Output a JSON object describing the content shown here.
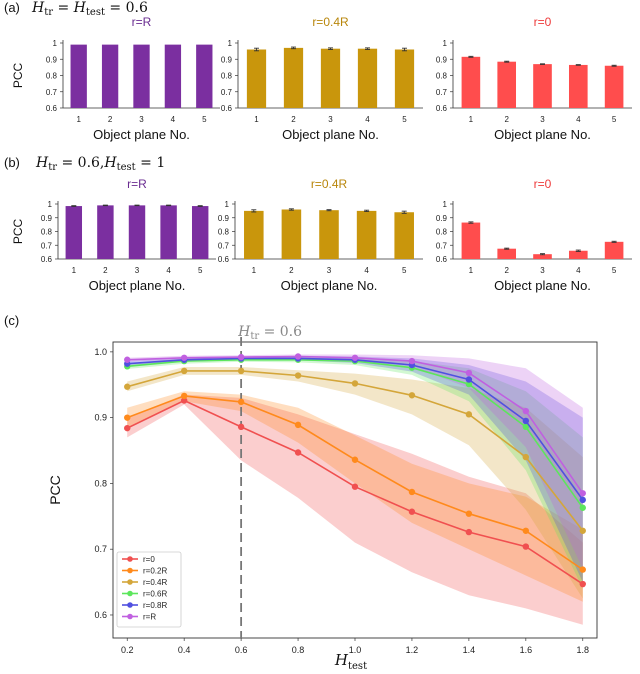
{
  "panels": {
    "a": {
      "label": "(a)",
      "heading": "H_tr = H_test = 0.6",
      "heading_parts": {
        "h1": "H",
        "s1": "tr",
        "eq1": " = ",
        "h2": "H",
        "s2": "test",
        "eq2": " = 0.6"
      }
    },
    "b": {
      "label": "(b)",
      "heading": "H_tr = 0.6, H_test = 1",
      "heading_parts": {
        "h1": "H",
        "s1": "tr",
        "eq1": " = 0.6,",
        "h2": "H",
        "s2": "test",
        "eq2": " = 1"
      }
    },
    "c": {
      "label": "(c)",
      "annotation": "H_tr = 0.6",
      "annotation_parts": {
        "h": "H",
        "s": "tr",
        "eq": " = 0.6"
      }
    }
  },
  "chart_data": [
    {
      "id": "a1",
      "type": "bar",
      "title": "r=R",
      "color": "#7b2fa0",
      "title_color": "#6a2c91",
      "categories": [
        "1",
        "2",
        "3",
        "4",
        "5"
      ],
      "values": [
        0.99,
        0.99,
        0.99,
        0.99,
        0.99
      ],
      "errors": [
        0,
        0,
        0,
        0,
        0
      ],
      "ylabel": "PCC",
      "xlabel": "Object plane No.",
      "ylim": [
        0.6,
        1.0
      ],
      "yticks": [
        "0.6",
        "0.7",
        "0.8",
        "0.9",
        "1"
      ]
    },
    {
      "id": "a2",
      "type": "bar",
      "title": "r=0.4R",
      "color": "#c9960c",
      "title_color": "#b8860b",
      "categories": [
        "1",
        "2",
        "3",
        "4",
        "5"
      ],
      "values": [
        0.96,
        0.97,
        0.965,
        0.965,
        0.96
      ],
      "errors": [
        0.008,
        0.005,
        0.005,
        0.005,
        0.008
      ],
      "ylabel": "",
      "xlabel": "Object plane No.",
      "ylim": [
        0.6,
        1.0
      ],
      "yticks": [
        "0.6",
        "0.7",
        "0.8",
        "0.9",
        "1"
      ]
    },
    {
      "id": "a3",
      "type": "bar",
      "title": "r=0",
      "color": "#ff4d4d",
      "title_color": "#ee3b3b",
      "categories": [
        "1",
        "2",
        "3",
        "4",
        "5"
      ],
      "values": [
        0.915,
        0.885,
        0.87,
        0.865,
        0.86
      ],
      "errors": [
        0.003,
        0.003,
        0.002,
        0.002,
        0.003
      ],
      "ylabel": "",
      "xlabel": "Object plane No.",
      "ylim": [
        0.6,
        1.0
      ],
      "yticks": [
        "0.6",
        "0.7",
        "0.8",
        "0.9",
        "1"
      ]
    },
    {
      "id": "b1",
      "type": "bar",
      "title": "r=R",
      "color": "#7b2fa0",
      "title_color": "#6a2c91",
      "categories": [
        "1",
        "2",
        "3",
        "4",
        "5"
      ],
      "values": [
        0.985,
        0.99,
        0.99,
        0.99,
        0.985
      ],
      "errors": [
        0.003,
        0.002,
        0.002,
        0.002,
        0.003
      ],
      "ylabel": "PCC",
      "xlabel": "Object plane No.",
      "ylim": [
        0.6,
        1.0
      ],
      "yticks": [
        "0.6",
        "0.7",
        "0.8",
        "0.9",
        "1"
      ]
    },
    {
      "id": "b2",
      "type": "bar",
      "title": "r=0.4R",
      "color": "#c9960c",
      "title_color": "#b8860b",
      "categories": [
        "1",
        "2",
        "3",
        "4",
        "5"
      ],
      "values": [
        0.95,
        0.96,
        0.955,
        0.95,
        0.94
      ],
      "errors": [
        0.008,
        0.005,
        0.004,
        0.005,
        0.008
      ],
      "ylabel": "",
      "xlabel": "Object plane No.",
      "ylim": [
        0.6,
        1.0
      ],
      "yticks": [
        "0.6",
        "0.7",
        "0.8",
        "0.9",
        "1"
      ]
    },
    {
      "id": "b3",
      "type": "bar",
      "title": "r=0",
      "color": "#ff4d4d",
      "title_color": "#ee3b3b",
      "categories": [
        "1",
        "2",
        "3",
        "4",
        "5"
      ],
      "values": [
        0.865,
        0.675,
        0.635,
        0.66,
        0.725
      ],
      "errors": [
        0.005,
        0.004,
        0.004,
        0.005,
        0.004
      ],
      "ylabel": "",
      "xlabel": "Object plane No.",
      "ylim": [
        0.6,
        1.0
      ],
      "yticks": [
        "0.6",
        "0.7",
        "0.8",
        "0.9",
        "1"
      ]
    },
    {
      "id": "c",
      "type": "line",
      "xlabel": "H_test",
      "ylabel": "PCC",
      "xlim": [
        0.15,
        1.85
      ],
      "ylim": [
        0.565,
        1.015
      ],
      "xticks": [
        0.2,
        0.4,
        0.6,
        0.8,
        1.0,
        1.2,
        1.4,
        1.6,
        1.8
      ],
      "xtick_labels": [
        "0.2",
        "0.4",
        "0.6",
        "0.8",
        "1.0",
        "1.2",
        "1.4",
        "1.6",
        "1.8"
      ],
      "yticks": [
        0.6,
        0.7,
        0.8,
        0.9,
        1.0
      ],
      "ytick_labels": [
        "0.6",
        "0.7",
        "0.8",
        "0.9",
        "1.0"
      ],
      "vline_x": 0.6,
      "x": [
        0.2,
        0.4,
        0.6,
        0.8,
        1.0,
        1.2,
        1.4,
        1.6,
        1.8
      ],
      "series": [
        {
          "name": "r=0",
          "color": "#f05050",
          "values": [
            0.884,
            0.926,
            0.886,
            0.847,
            0.795,
            0.757,
            0.726,
            0.704,
            0.647
          ],
          "lower": [
            0.87,
            0.92,
            0.835,
            0.778,
            0.71,
            0.665,
            0.63,
            0.61,
            0.585
          ],
          "upper": [
            0.9,
            0.935,
            0.93,
            0.905,
            0.875,
            0.845,
            0.81,
            0.785,
            0.71
          ]
        },
        {
          "name": "r=0.2R",
          "color": "#ff8a1c",
          "values": [
            0.9,
            0.933,
            0.924,
            0.889,
            0.836,
            0.787,
            0.754,
            0.728,
            0.669
          ],
          "lower": [
            0.885,
            0.925,
            0.91,
            0.862,
            0.8,
            0.74,
            0.7,
            0.66,
            0.62
          ],
          "upper": [
            0.915,
            0.94,
            0.935,
            0.915,
            0.873,
            0.83,
            0.8,
            0.78,
            0.73
          ]
        },
        {
          "name": "r=0.4R",
          "color": "#d4a63a",
          "values": [
            0.947,
            0.971,
            0.971,
            0.964,
            0.952,
            0.934,
            0.905,
            0.84,
            0.728
          ],
          "lower": [
            0.94,
            0.965,
            0.965,
            0.955,
            0.935,
            0.905,
            0.858,
            0.76,
            0.625
          ],
          "upper": [
            0.955,
            0.977,
            0.977,
            0.972,
            0.967,
            0.958,
            0.945,
            0.915,
            0.84
          ]
        },
        {
          "name": "r=0.6R",
          "color": "#5ce65c",
          "values": [
            0.978,
            0.986,
            0.988,
            0.988,
            0.986,
            0.976,
            0.951,
            0.886,
            0.763
          ],
          "lower": [
            0.974,
            0.982,
            0.985,
            0.984,
            0.98,
            0.965,
            0.925,
            0.82,
            0.64
          ],
          "upper": [
            0.982,
            0.99,
            0.992,
            0.992,
            0.991,
            0.986,
            0.975,
            0.94,
            0.87
          ]
        },
        {
          "name": "r=0.8R",
          "color": "#5050e0",
          "values": [
            0.982,
            0.988,
            0.99,
            0.99,
            0.988,
            0.98,
            0.958,
            0.895,
            0.775
          ],
          "lower": [
            0.978,
            0.985,
            0.987,
            0.987,
            0.983,
            0.97,
            0.935,
            0.835,
            0.65
          ],
          "upper": [
            0.986,
            0.992,
            0.993,
            0.994,
            0.993,
            0.99,
            0.98,
            0.955,
            0.9
          ]
        },
        {
          "name": "r=R",
          "color": "#c060e0",
          "values": [
            0.988,
            0.991,
            0.992,
            0.993,
            0.991,
            0.986,
            0.968,
            0.91,
            0.785
          ],
          "lower": [
            0.985,
            0.988,
            0.989,
            0.99,
            0.987,
            0.978,
            0.945,
            0.855,
            0.67
          ],
          "upper": [
            0.991,
            0.994,
            0.995,
            0.996,
            0.996,
            0.995,
            0.99,
            0.975,
            0.915
          ]
        }
      ]
    }
  ]
}
